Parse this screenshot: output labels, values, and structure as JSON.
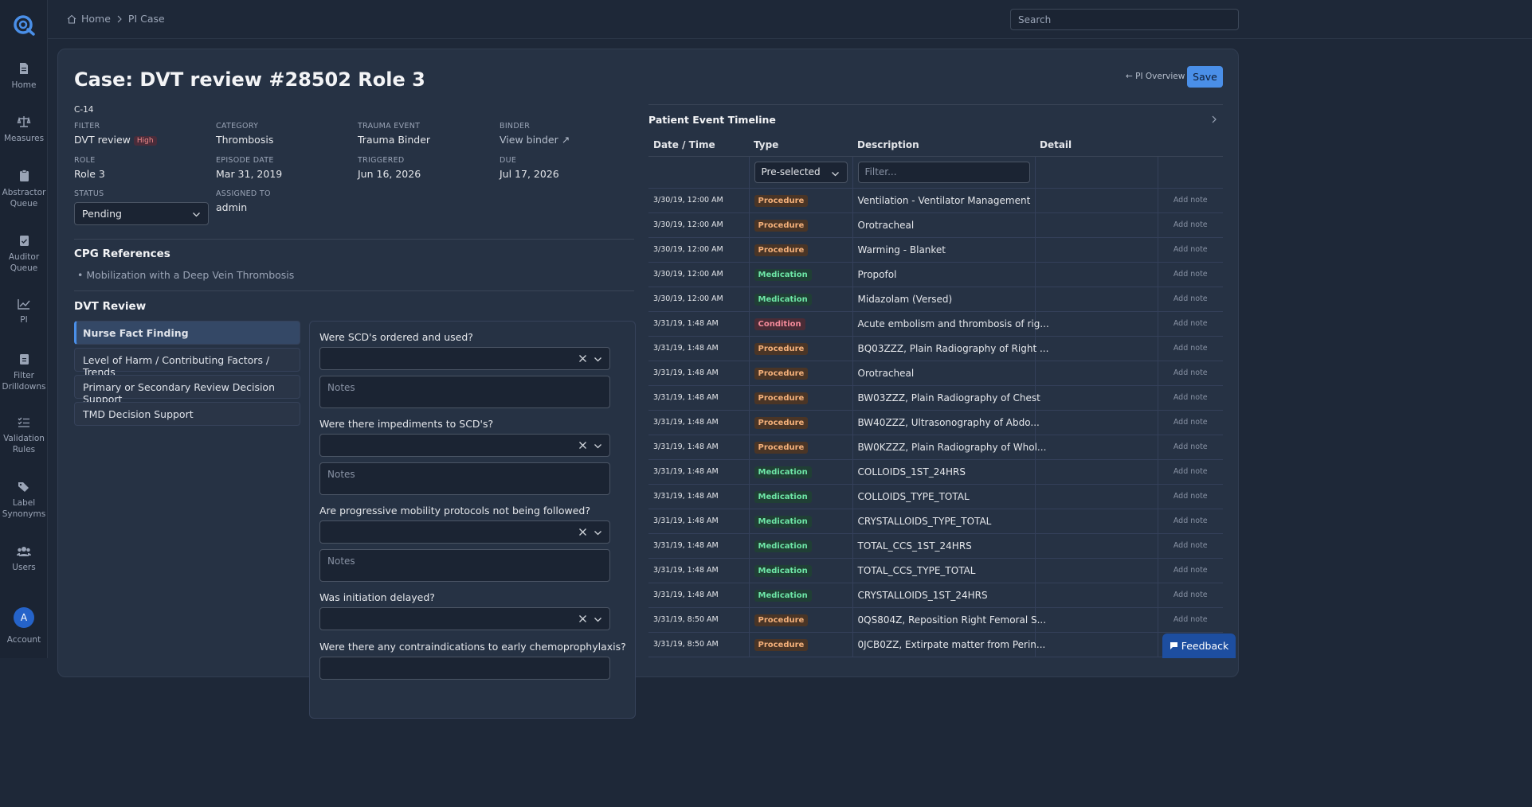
{
  "nav": {
    "items": [
      {
        "label": "Home"
      },
      {
        "label": "Measures"
      },
      {
        "label": "Abstractor Queue"
      },
      {
        "label": "Auditor Queue"
      },
      {
        "label": "PI"
      },
      {
        "label": "Filter Drilldowns"
      },
      {
        "label": "Validation Rules"
      },
      {
        "label": "Label Synonyms"
      },
      {
        "label": "Users"
      }
    ],
    "account": {
      "initial": "A",
      "label": "Account"
    }
  },
  "breadcrumb": {
    "home": "Home",
    "current": "PI Case"
  },
  "search": {
    "placeholder": "Search"
  },
  "case": {
    "title": "Case: DVT review #28502 Role 3",
    "pi_overview": "← PI Overview",
    "save": "Save",
    "code": "C-14",
    "fields": {
      "filter": {
        "label": "FILTER",
        "value": "DVT review",
        "badge": "High"
      },
      "category": {
        "label": "CATEGORY",
        "value": "Thrombosis"
      },
      "trauma_event": {
        "label": "TRAUMA EVENT",
        "value": "Trauma Binder"
      },
      "binder": {
        "label": "BINDER",
        "value": "View binder ↗"
      },
      "role": {
        "label": "ROLE",
        "value": "Role 3"
      },
      "episode_date": {
        "label": "EPISODE DATE",
        "value": "Mar 31, 2019"
      },
      "triggered": {
        "label": "TRIGGERED",
        "value": "Jun 16, 2026"
      },
      "due": {
        "label": "DUE",
        "value": "Jul 17, 2026"
      },
      "status": {
        "label": "STATUS",
        "value": "Pending"
      },
      "assigned_to": {
        "label": "ASSIGNED TO",
        "value": "admin"
      }
    }
  },
  "cpg": {
    "heading": "CPG References",
    "items": [
      "Mobilization with a Deep Vein Thrombosis"
    ]
  },
  "review": {
    "heading": "DVT Review",
    "tabs": [
      "Nurse Fact Finding",
      "Level of Harm / Contributing Factors / Trends",
      "Primary or Secondary Review Decision Support",
      "TMD Decision Support"
    ],
    "notes_placeholder": "Notes",
    "questions": [
      "Were SCD's ordered and used?",
      "Were there impediments to SCD's?",
      "Are progressive mobility protocols not being followed?",
      "Was initiation delayed?",
      "Were there any contraindications to early chemoprophylaxis?"
    ]
  },
  "timeline": {
    "title": "Patient Event Timeline",
    "columns": [
      "Date / Time",
      "Type",
      "Description",
      "Detail"
    ],
    "type_filter": "Pre-selected",
    "filter_placeholder": "Filter...",
    "add_note": "Add note",
    "rows": [
      {
        "dt": "3/30/19, 12:00 AM",
        "type": "Procedure",
        "desc": "Ventilation - Ventilator Management"
      },
      {
        "dt": "3/30/19, 12:00 AM",
        "type": "Procedure",
        "desc": "Orotracheal"
      },
      {
        "dt": "3/30/19, 12:00 AM",
        "type": "Procedure",
        "desc": "Warming - Blanket"
      },
      {
        "dt": "3/30/19, 12:00 AM",
        "type": "Medication",
        "desc": "Propofol"
      },
      {
        "dt": "3/30/19, 12:00 AM",
        "type": "Medication",
        "desc": "Midazolam (Versed)"
      },
      {
        "dt": "3/31/19, 1:48 AM",
        "type": "Condition",
        "desc": "Acute embolism and thrombosis of rig..."
      },
      {
        "dt": "3/31/19, 1:48 AM",
        "type": "Procedure",
        "desc": "BQ03ZZZ, Plain Radiography of Right ..."
      },
      {
        "dt": "3/31/19, 1:48 AM",
        "type": "Procedure",
        "desc": "Orotracheal"
      },
      {
        "dt": "3/31/19, 1:48 AM",
        "type": "Procedure",
        "desc": "BW03ZZZ, Plain Radiography of Chest"
      },
      {
        "dt": "3/31/19, 1:48 AM",
        "type": "Procedure",
        "desc": "BW40ZZZ, Ultrasonography of Abdo..."
      },
      {
        "dt": "3/31/19, 1:48 AM",
        "type": "Procedure",
        "desc": "BW0KZZZ, Plain Radiography of Whol..."
      },
      {
        "dt": "3/31/19, 1:48 AM",
        "type": "Medication",
        "desc": "COLLOIDS_1ST_24HRS"
      },
      {
        "dt": "3/31/19, 1:48 AM",
        "type": "Medication",
        "desc": "COLLOIDS_TYPE_TOTAL"
      },
      {
        "dt": "3/31/19, 1:48 AM",
        "type": "Medication",
        "desc": "CRYSTALLOIDS_TYPE_TOTAL"
      },
      {
        "dt": "3/31/19, 1:48 AM",
        "type": "Medication",
        "desc": "TOTAL_CCS_1ST_24HRS"
      },
      {
        "dt": "3/31/19, 1:48 AM",
        "type": "Medication",
        "desc": "TOTAL_CCS_TYPE_TOTAL"
      },
      {
        "dt": "3/31/19, 1:48 AM",
        "type": "Medication",
        "desc": "CRYSTALLOIDS_1ST_24HRS"
      },
      {
        "dt": "3/31/19, 8:50 AM",
        "type": "Procedure",
        "desc": "0QS804Z, Reposition Right Femoral S..."
      },
      {
        "dt": "3/31/19, 8:50 AM",
        "type": "Procedure",
        "desc": "0JCB0ZZ, Extirpate matter from Perin..."
      }
    ]
  },
  "feedback": "Feedback",
  "colors": {
    "accent": "#4a8fe8",
    "background": "#1e2838",
    "card": "#263244"
  }
}
